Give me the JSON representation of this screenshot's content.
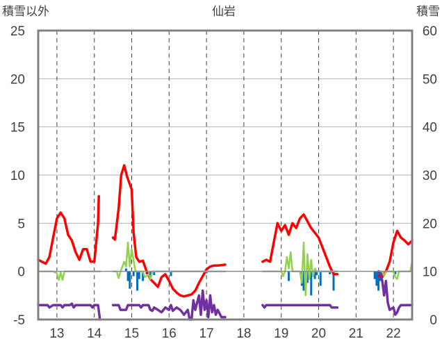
{
  "chart_data": {
    "type": "line",
    "title": "仙岩",
    "left_axis_label": "積雪以外",
    "right_axis_label": "積雪",
    "x_range": [
      12.5,
      22.5
    ],
    "x_ticks": [
      13,
      14,
      15,
      16,
      17,
      18,
      19,
      20,
      21,
      22
    ],
    "y_left": {
      "range": [
        -5,
        25
      ],
      "ticks": [
        -5,
        0,
        5,
        10,
        15,
        20,
        25
      ]
    },
    "y_right": {
      "range": [
        0,
        60
      ],
      "ticks": [
        0,
        10,
        20,
        30,
        40,
        50,
        60
      ]
    },
    "grid": {
      "horizontal": "solid",
      "vertical": "dashed"
    },
    "colors": {
      "temperature": "#ff0000",
      "wind": "#92d050",
      "precip": "#0070c0",
      "snow": "#7030a0",
      "axis": "#808080",
      "grid": "#b0b0b0"
    },
    "series": [
      {
        "key": "temperature",
        "axis": "left",
        "style": "line",
        "segments": [
          [
            [
              12.5,
              1.2
            ],
            [
              12.6,
              1.0
            ],
            [
              12.7,
              0.8
            ],
            [
              12.8,
              1.5
            ],
            [
              12.9,
              3.5
            ],
            [
              13.0,
              5.5
            ],
            [
              13.1,
              6.1
            ],
            [
              13.2,
              5.5
            ],
            [
              13.3,
              3.8
            ],
            [
              13.4,
              3.2
            ],
            [
              13.5,
              2.0
            ],
            [
              13.6,
              1.2
            ],
            [
              13.7,
              2.3
            ],
            [
              13.8,
              2.3
            ],
            [
              13.9,
              1.0
            ],
            [
              14.0,
              1.0
            ],
            [
              14.1,
              5.0
            ],
            [
              14.12,
              7.8
            ]
          ],
          [
            [
              14.5,
              3.5
            ],
            [
              14.55,
              3.3
            ],
            [
              14.65,
              6.5
            ],
            [
              14.72,
              10.0
            ],
            [
              14.8,
              11.0
            ],
            [
              14.88,
              9.8
            ],
            [
              15.0,
              8.5
            ],
            [
              15.05,
              4.0
            ],
            [
              15.12,
              1.5
            ],
            [
              15.2,
              1.0
            ],
            [
              15.3,
              1.1
            ],
            [
              15.4,
              0.0
            ],
            [
              15.5,
              -0.8
            ],
            [
              15.6,
              -1.2
            ],
            [
              15.7,
              -1.6
            ],
            [
              15.8,
              -0.6
            ],
            [
              15.9,
              -0.3
            ],
            [
              16.0,
              -1.0
            ],
            [
              16.1,
              -1.8
            ],
            [
              16.2,
              -2.2
            ],
            [
              16.3,
              -2.5
            ],
            [
              16.4,
              -2.6
            ],
            [
              16.5,
              -2.5
            ],
            [
              16.6,
              -2.4
            ],
            [
              16.7,
              -2.0
            ],
            [
              16.8,
              -1.2
            ],
            [
              16.9,
              -0.5
            ],
            [
              17.0,
              0.2
            ],
            [
              17.1,
              0.5
            ],
            [
              17.2,
              0.6
            ],
            [
              17.3,
              0.6
            ],
            [
              17.5,
              0.7
            ]
          ],
          [
            [
              18.5,
              1.0
            ],
            [
              18.6,
              1.2
            ],
            [
              18.7,
              1.0
            ],
            [
              18.8,
              3.0
            ],
            [
              18.9,
              5.0
            ],
            [
              19.0,
              4.2
            ],
            [
              19.1,
              4.8
            ],
            [
              19.2,
              3.8
            ],
            [
              19.3,
              5.0
            ],
            [
              19.4,
              4.5
            ],
            [
              19.5,
              5.5
            ],
            [
              19.6,
              5.9
            ],
            [
              19.7,
              5.2
            ],
            [
              19.8,
              4.5
            ],
            [
              19.9,
              4.0
            ],
            [
              20.0,
              3.5
            ],
            [
              20.1,
              2.5
            ],
            [
              20.2,
              1.5
            ],
            [
              20.3,
              0.5
            ],
            [
              20.4,
              -0.3
            ],
            [
              20.5,
              -0.3
            ]
          ],
          [
            [
              21.6,
              -0.5
            ],
            [
              21.7,
              -0.6
            ],
            [
              21.8,
              0.0
            ],
            [
              21.9,
              1.0
            ],
            [
              22.0,
              3.0
            ],
            [
              22.1,
              4.2
            ],
            [
              22.2,
              3.5
            ],
            [
              22.3,
              3.2
            ],
            [
              22.4,
              2.8
            ],
            [
              22.5,
              3.2
            ]
          ]
        ]
      },
      {
        "key": "wind",
        "axis": "left",
        "style": "line",
        "segments": [
          [
            [
              12.5,
              0
            ],
            [
              12.9,
              0
            ],
            [
              13.0,
              -0.2
            ],
            [
              13.05,
              -0.9
            ],
            [
              13.1,
              -0.1
            ],
            [
              13.15,
              -0.9
            ],
            [
              13.2,
              0
            ],
            [
              14.15,
              0
            ]
          ],
          [
            [
              14.5,
              0
            ],
            [
              14.6,
              0
            ],
            [
              14.65,
              -0.7
            ],
            [
              14.7,
              0
            ],
            [
              14.8,
              1.0
            ],
            [
              14.85,
              0.5
            ],
            [
              14.9,
              3.0
            ],
            [
              14.95,
              0.5
            ],
            [
              15.0,
              2.3
            ],
            [
              15.1,
              0
            ],
            [
              15.3,
              0
            ],
            [
              15.35,
              -0.6
            ],
            [
              15.45,
              -0.3
            ],
            [
              15.5,
              -0.8
            ],
            [
              15.55,
              0
            ],
            [
              17.5,
              0
            ]
          ],
          [
            [
              18.5,
              0
            ],
            [
              19.0,
              0
            ],
            [
              19.05,
              -0.5
            ],
            [
              19.1,
              0
            ],
            [
              19.15,
              1.5
            ],
            [
              19.2,
              0.3
            ],
            [
              19.25,
              2.0
            ],
            [
              19.3,
              0
            ],
            [
              19.5,
              0
            ],
            [
              19.55,
              -1.2
            ],
            [
              19.6,
              3.0
            ],
            [
              19.65,
              -2.5
            ],
            [
              19.7,
              1.8
            ],
            [
              19.75,
              -0.8
            ],
            [
              19.8,
              1.2
            ],
            [
              19.85,
              -0.5
            ],
            [
              19.9,
              0.3
            ],
            [
              19.95,
              0
            ],
            [
              20.5,
              0
            ]
          ],
          [
            [
              21.6,
              0
            ],
            [
              21.7,
              0
            ],
            [
              21.75,
              -0.5
            ],
            [
              21.8,
              0
            ],
            [
              22.0,
              0
            ],
            [
              22.05,
              -0.6
            ],
            [
              22.1,
              -0.8
            ],
            [
              22.15,
              0
            ],
            [
              22.45,
              0
            ],
            [
              22.5,
              1.0
            ]
          ]
        ]
      },
      {
        "key": "snow",
        "axis": "right",
        "style": "line",
        "segments": [
          [
            [
              12.5,
              3
            ],
            [
              12.75,
              3
            ],
            [
              12.8,
              2.5
            ],
            [
              12.9,
              3
            ],
            [
              13.1,
              3
            ],
            [
              13.15,
              2.5
            ],
            [
              13.2,
              3
            ],
            [
              13.35,
              3
            ],
            [
              13.4,
              3.3
            ],
            [
              13.45,
              2.5
            ],
            [
              13.5,
              3
            ],
            [
              13.9,
              3
            ],
            [
              13.95,
              2.5
            ],
            [
              14.0,
              3
            ],
            [
              14.1,
              3
            ],
            [
              14.15,
              0
            ]
          ],
          [
            [
              14.5,
              3
            ],
            [
              14.65,
              3
            ],
            [
              14.7,
              2.0
            ],
            [
              14.85,
              2.0
            ],
            [
              14.9,
              3
            ],
            [
              15.2,
              3
            ],
            [
              15.25,
              2.5
            ],
            [
              15.3,
              3
            ],
            [
              15.45,
              3
            ],
            [
              15.5,
              2.0
            ],
            [
              15.55,
              1.8
            ],
            [
              15.6,
              2.5
            ],
            [
              15.7,
              2.0
            ],
            [
              15.8,
              1.5
            ],
            [
              15.9,
              2.5
            ],
            [
              16.0,
              2.0
            ],
            [
              16.05,
              3.0
            ],
            [
              16.1,
              1.8
            ],
            [
              16.2,
              2.5
            ],
            [
              16.3,
              2.0
            ],
            [
              16.4,
              1.0
            ],
            [
              16.5,
              2.0
            ],
            [
              16.55,
              0
            ],
            [
              16.6,
              0
            ],
            [
              16.65,
              4.0
            ],
            [
              16.7,
              2.0
            ],
            [
              16.8,
              5.0
            ],
            [
              16.85,
              1.0
            ],
            [
              16.9,
              6.0
            ],
            [
              16.95,
              2.0
            ],
            [
              17.0,
              4.0
            ],
            [
              17.05,
              0.5
            ],
            [
              17.1,
              5.0
            ],
            [
              17.15,
              1.5
            ],
            [
              17.2,
              3.0
            ],
            [
              17.25,
              1.0
            ],
            [
              17.3,
              2.0
            ],
            [
              17.4,
              0.5
            ],
            [
              17.5,
              0.5
            ]
          ],
          [
            [
              18.5,
              3
            ],
            [
              18.55,
              2.5
            ],
            [
              18.6,
              3
            ],
            [
              20.3,
              3
            ],
            [
              20.35,
              2.5
            ],
            [
              20.5,
              2.5
            ]
          ],
          [
            [
              21.6,
              10
            ],
            [
              21.65,
              9.5
            ],
            [
              21.7,
              8.0
            ],
            [
              21.75,
              5.0
            ],
            [
              21.8,
              8.0
            ],
            [
              21.85,
              3.5
            ],
            [
              21.9,
              2.0
            ],
            [
              22.0,
              2.5
            ],
            [
              22.05,
              1.0
            ],
            [
              22.1,
              1.5
            ],
            [
              22.15,
              2.5
            ],
            [
              22.2,
              3
            ],
            [
              22.5,
              3
            ]
          ]
        ]
      }
    ],
    "precip": [
      [
        14.85,
        0.3
      ],
      [
        14.9,
        -1.0
      ],
      [
        14.95,
        -1.8
      ],
      [
        15.05,
        -0.5
      ],
      [
        15.15,
        -2.0
      ],
      [
        15.2,
        -0.8
      ],
      [
        15.3,
        -1.0
      ],
      [
        15.4,
        -0.3
      ],
      [
        15.5,
        -0.5
      ],
      [
        15.6,
        -0.4
      ],
      [
        16.05,
        -0.5
      ],
      [
        17.0,
        -0.2
      ],
      [
        19.2,
        -1.0
      ],
      [
        19.55,
        -1.5
      ],
      [
        19.6,
        -2.0
      ],
      [
        19.65,
        -1.0
      ],
      [
        19.7,
        -1.2
      ],
      [
        19.75,
        -0.5
      ],
      [
        19.8,
        -2.5
      ],
      [
        19.9,
        -0.8
      ],
      [
        19.95,
        -0.4
      ],
      [
        20.05,
        -1.5
      ],
      [
        20.3,
        -0.3
      ],
      [
        20.4,
        -2.0
      ],
      [
        21.5,
        -0.8
      ],
      [
        21.55,
        -1.5
      ],
      [
        21.6,
        -2.0
      ],
      [
        21.65,
        -1.0
      ],
      [
        21.7,
        -0.5
      ],
      [
        22.05,
        -0.3
      ]
    ]
  }
}
